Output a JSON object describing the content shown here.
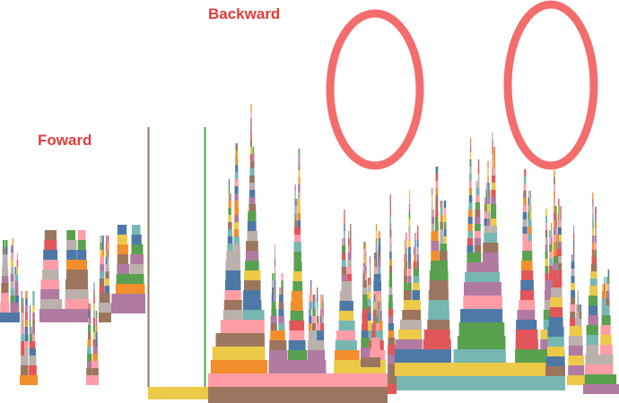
{
  "annotations": {
    "forward": "Foward",
    "backward": "Backward"
  }
}
